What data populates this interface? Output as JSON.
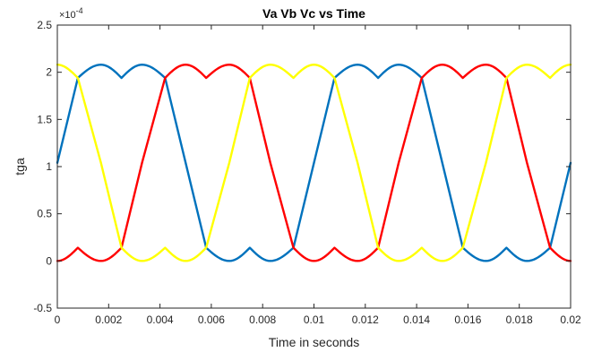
{
  "chart_data": {
    "type": "line",
    "title": "Va Vb Vc vs Time",
    "xlabel": "Time in seconds",
    "ylabel": "tga",
    "exponent_label": "×10",
    "exponent_power": "-4",
    "xlim": [
      0,
      0.02
    ],
    "ylim": [
      -0.5,
      2.5
    ],
    "y_scale_factor": 0.0001,
    "x_ticks": [
      0,
      0.002,
      0.004,
      0.006,
      0.008,
      0.01,
      0.012,
      0.014,
      0.016,
      0.018,
      0.02
    ],
    "x_tick_labels": [
      "0",
      "0.002",
      "0.004",
      "0.006",
      "0.008",
      "0.01",
      "0.012",
      "0.014",
      "0.016",
      "0.018",
      "0.02"
    ],
    "y_ticks": [
      -0.5,
      0,
      0.5,
      1,
      1.5,
      2,
      2.5
    ],
    "y_tick_labels": [
      "-0.5",
      "0",
      "0.5",
      "1",
      "1.5",
      "2",
      "2.5"
    ],
    "grid": false,
    "series": [
      {
        "color": "#0072BD",
        "x": [
          0,
          0.0008,
          0.0017,
          0.0025,
          0.0033,
          0.0042,
          0.005,
          0.0058,
          0.0067,
          0.0075,
          0.0083,
          0.0092,
          0.01,
          0.0108,
          0.0117,
          0.0125,
          0.0133,
          0.0142,
          0.015,
          0.0158,
          0.0167,
          0.0175,
          0.0183,
          0.0192,
          0.02
        ],
        "values": [
          1.04,
          1.94,
          2.08,
          1.94,
          2.08,
          1.94,
          1.04,
          0.14,
          0,
          0.14,
          0,
          0.14,
          1.04,
          1.94,
          2.08,
          1.94,
          2.08,
          1.94,
          1.04,
          0.14,
          0,
          0.14,
          0,
          0.14,
          1.04
        ]
      },
      {
        "color": "#FF0000",
        "x": [
          0,
          0.0008,
          0.0017,
          0.0025,
          0.0033,
          0.0042,
          0.005,
          0.0058,
          0.0067,
          0.0075,
          0.0083,
          0.0092,
          0.01,
          0.0108,
          0.0117,
          0.0125,
          0.0133,
          0.0142,
          0.015,
          0.0158,
          0.0167,
          0.0175,
          0.0183,
          0.0192,
          0.02
        ],
        "values": [
          0,
          0.14,
          0,
          0.14,
          1.04,
          1.94,
          2.08,
          1.94,
          2.08,
          1.94,
          1.04,
          0.14,
          0,
          0.14,
          0,
          0.14,
          1.04,
          1.94,
          2.08,
          1.94,
          2.08,
          1.94,
          1.04,
          0.14,
          0
        ]
      },
      {
        "color": "#FFFF00",
        "x": [
          0,
          0.0008,
          0.0017,
          0.0025,
          0.0033,
          0.0042,
          0.005,
          0.0058,
          0.0067,
          0.0075,
          0.0083,
          0.0092,
          0.01,
          0.0108,
          0.0117,
          0.0125,
          0.0133,
          0.0142,
          0.015,
          0.0158,
          0.0167,
          0.0175,
          0.0183,
          0.0192,
          0.02
        ],
        "values": [
          2.08,
          1.94,
          1.04,
          0.14,
          0,
          0.14,
          0,
          0.14,
          1.04,
          1.94,
          2.08,
          1.94,
          2.08,
          1.94,
          1.04,
          0.14,
          0,
          0.14,
          0,
          0.14,
          1.04,
          1.94,
          2.08,
          1.94,
          2.08
        ]
      }
    ]
  }
}
